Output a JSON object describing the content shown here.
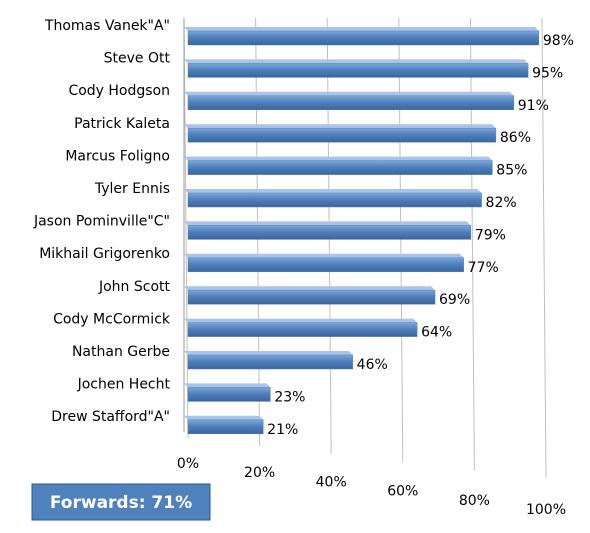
{
  "chart_data": {
    "type": "bar",
    "orientation": "horizontal",
    "categories": [
      "Thomas Vanek\"A\"",
      "Steve Ott",
      "Cody Hodgson",
      "Patrick Kaleta",
      "Marcus Foligno",
      "Tyler Ennis",
      "Jason Pominville\"C\"",
      "Mikhail Grigorenko",
      "John Scott",
      "Cody McCormick",
      "Nathan Gerbe",
      "Jochen Hecht",
      "Drew Stafford\"A\""
    ],
    "values": [
      98,
      95,
      91,
      86,
      85,
      82,
      79,
      77,
      69,
      64,
      46,
      23,
      21
    ],
    "value_labels": [
      "98%",
      "95%",
      "91%",
      "86%",
      "85%",
      "82%",
      "79%",
      "77%",
      "69%",
      "64%",
      "46%",
      "23%",
      "21%"
    ],
    "color": "#4f81bd",
    "xlim": [
      0,
      100
    ],
    "xticks": [
      {
        "value": 0,
        "label": "0%"
      },
      {
        "value": 20,
        "label": "20%"
      },
      {
        "value": 40,
        "label": "40%"
      },
      {
        "value": 60,
        "label": "60%"
      },
      {
        "value": 80,
        "label": "80%"
      },
      {
        "value": 100,
        "label": "100%"
      }
    ],
    "grid": true,
    "annotation": "Forwards: 71%"
  }
}
